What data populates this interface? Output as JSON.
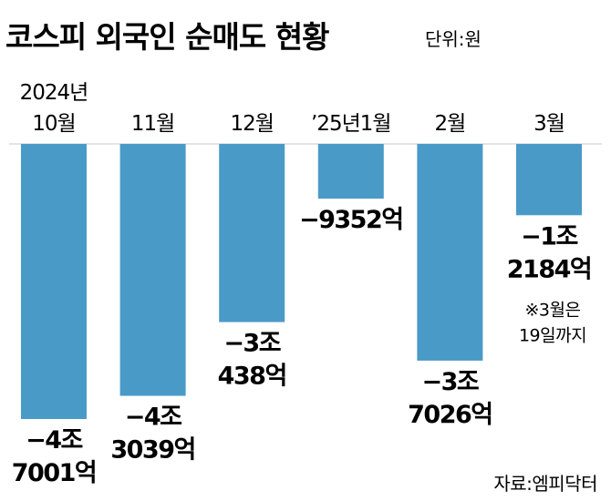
{
  "header": {
    "title": "코스피 외국인 순매도 현황",
    "unit": "단위:원"
  },
  "chart_data": {
    "type": "bar",
    "title": "코스피 외국인 순매도 현황",
    "unit_label": "단위:원",
    "categories": [
      [
        "2024년",
        "10월"
      ],
      [
        "11월"
      ],
      [
        "12월"
      ],
      [
        "’25년1월"
      ],
      [
        "2월"
      ],
      [
        "3월"
      ]
    ],
    "values_won": [
      -4700100000000,
      -4303900000000,
      -3043800000000,
      -935200000000,
      -3702600000000,
      -1218400000000
    ],
    "data_labels": [
      [
        "−4조",
        "7001억"
      ],
      [
        "−4조",
        "3039억"
      ],
      [
        "−3조",
        "438억"
      ],
      [
        "−9352억"
      ],
      [
        "−3조",
        "7026억"
      ],
      [
        "−1조",
        "2184억"
      ]
    ],
    "annotation": [
      "※3월은",
      "19일까지"
    ],
    "colors": {
      "bar": "#4a9ac8"
    }
  },
  "footer": {
    "source": "자료:엠피닥터"
  }
}
